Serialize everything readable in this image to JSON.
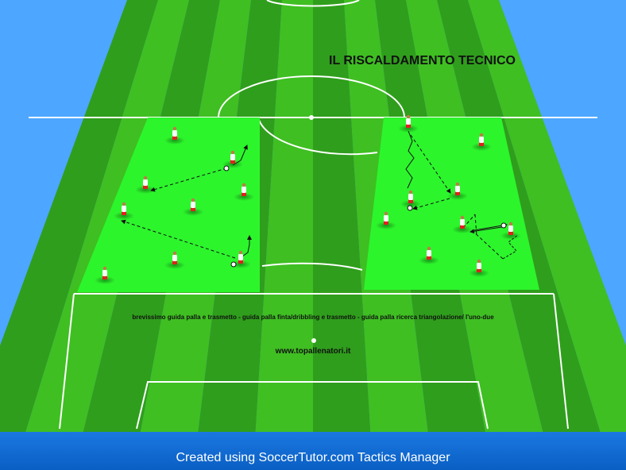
{
  "diagram": {
    "title": "IL RISCALDAMENTO TECNICO",
    "description": "brevissimo guida palla e trasmetto - guida palla finta/dribbling e trasmetto - guida palla ricerca triangolazione/ l'uno-due",
    "website": "www.topallenatori.it"
  },
  "footer": {
    "credit": "Created using SoccerTutor.com Tactics Manager"
  },
  "colors": {
    "sky": "#4da6ff",
    "grass_dark": "#2f9e1c",
    "grass_light": "#3fbf22",
    "training_area": "#2cf52c",
    "line": "#ffffff",
    "player_shirt": "#ffffff",
    "player_shorts": "#e02020"
  }
}
